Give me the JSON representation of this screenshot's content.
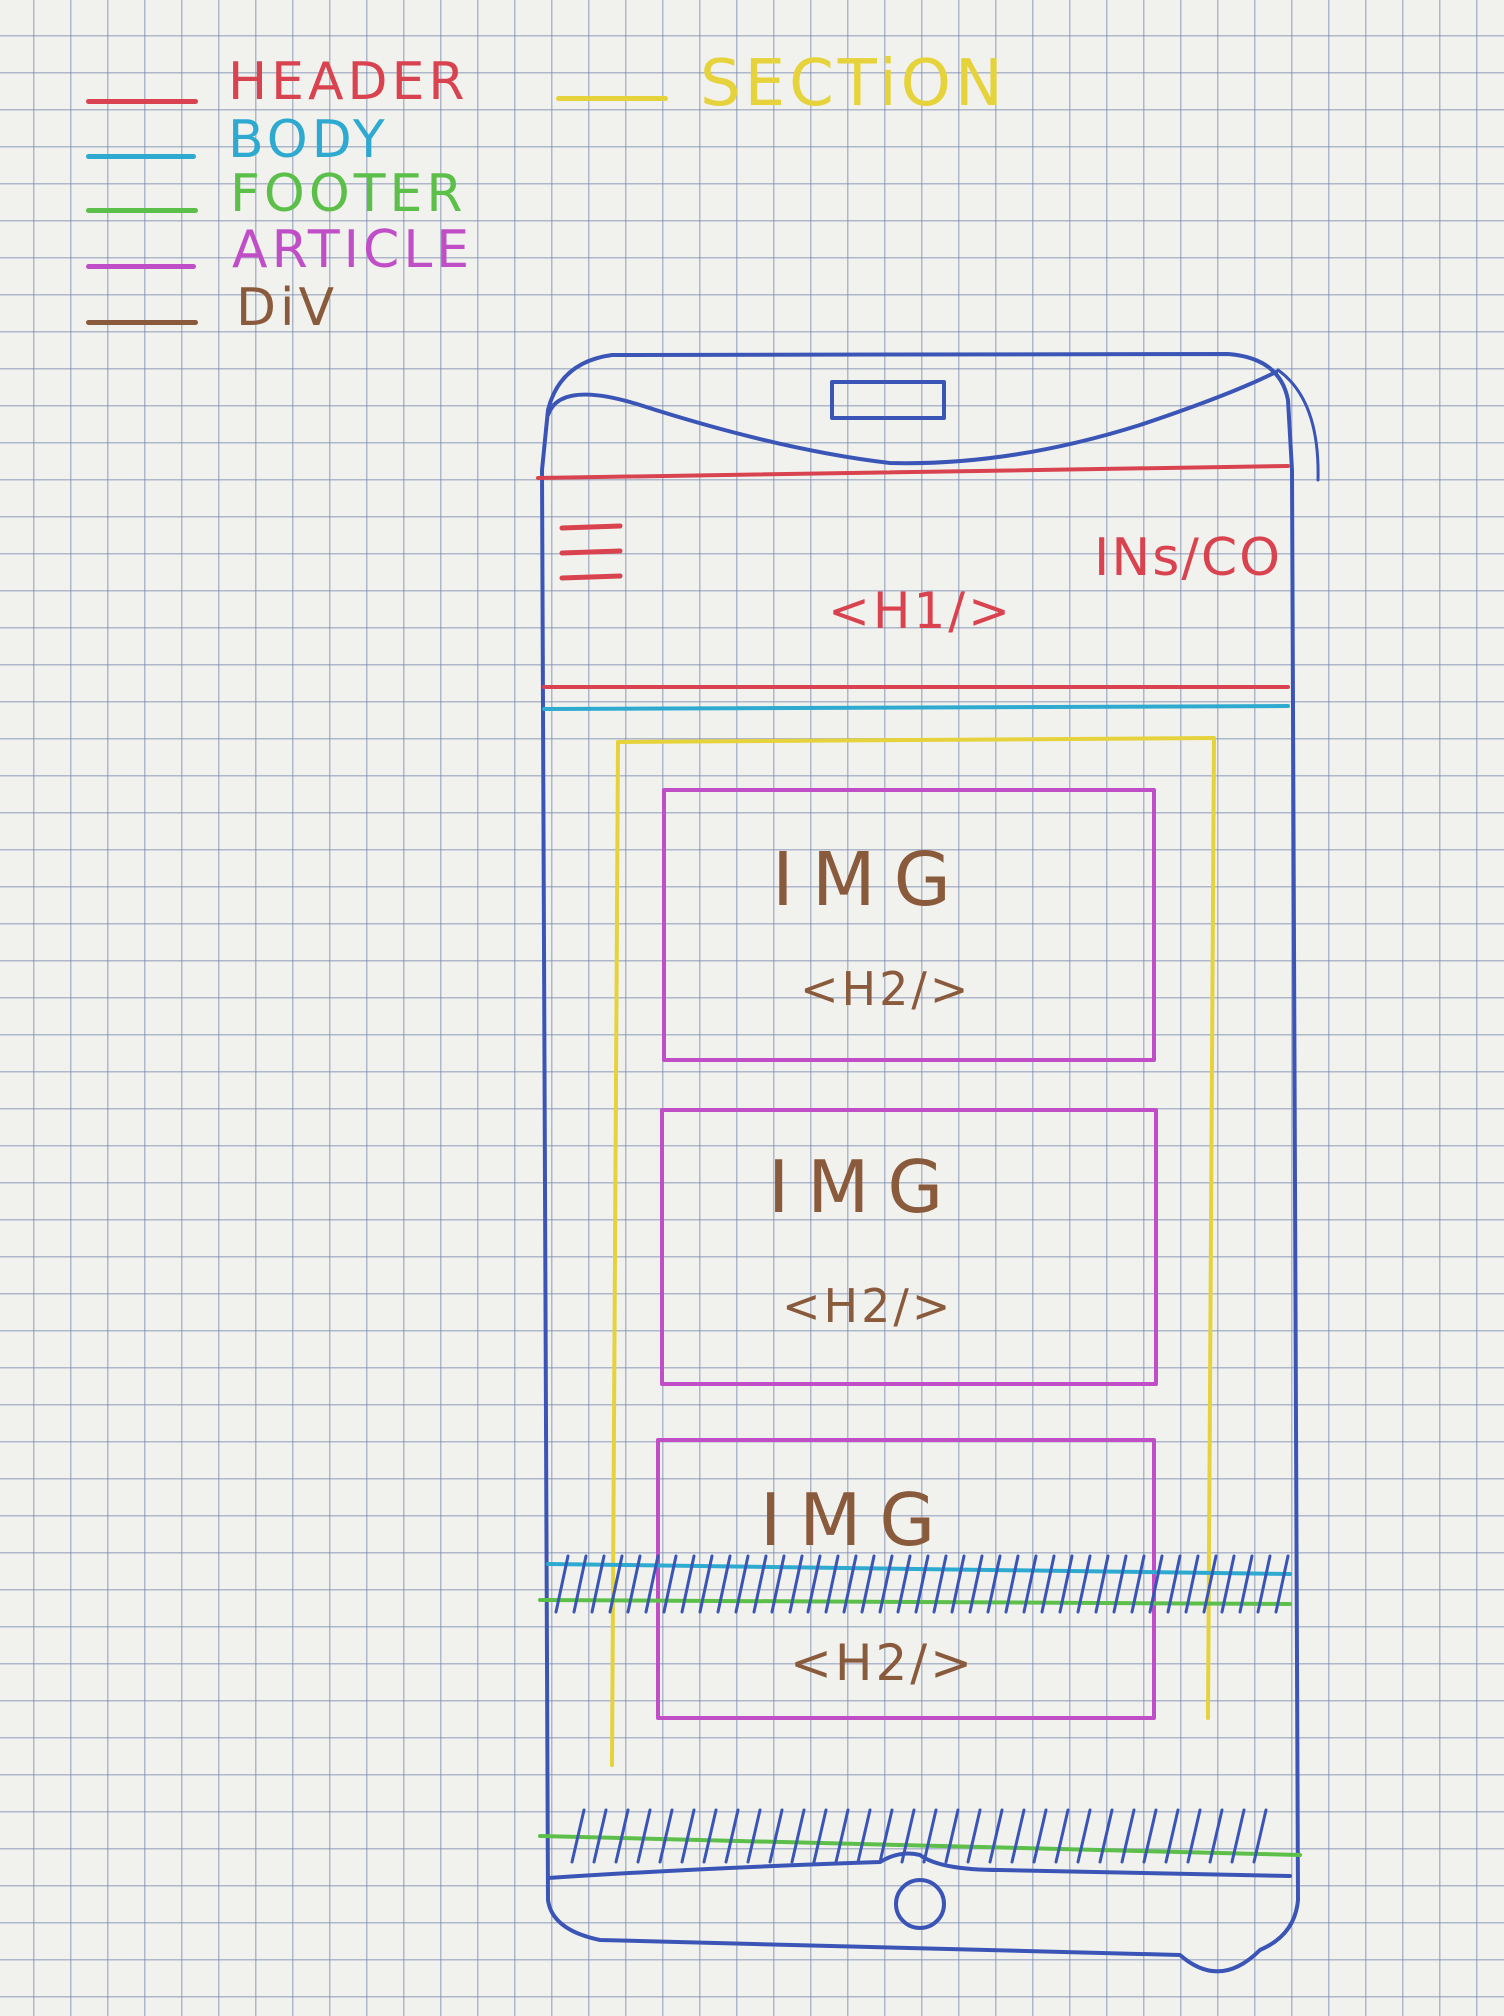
{
  "legend": {
    "header": {
      "label": "HEADER",
      "color": "#d9434f"
    },
    "body": {
      "label": "BODY",
      "color": "#2ea9cf"
    },
    "footer": {
      "label": "FOOTER",
      "color": "#5bbf4a"
    },
    "article": {
      "label": "ARTICLE",
      "color": "#c04fc7"
    },
    "div": {
      "label": "DiV",
      "color": "#8a5a3c"
    },
    "section": {
      "label": "SECTiON",
      "color": "#e6d23a"
    }
  },
  "phone": {
    "outline_color": "#3b55b7",
    "header": {
      "menu_icon": "hamburger-menu-icon",
      "login_label": "INs/CO",
      "title_tag": "<H1/>"
    },
    "articles": [
      {
        "image_label": "IMG",
        "heading_tag": "<H2/>"
      },
      {
        "image_label": "IMG",
        "heading_tag": "<H2/>"
      },
      {
        "image_label": "IMG",
        "heading_tag": "<H2/>"
      }
    ]
  }
}
